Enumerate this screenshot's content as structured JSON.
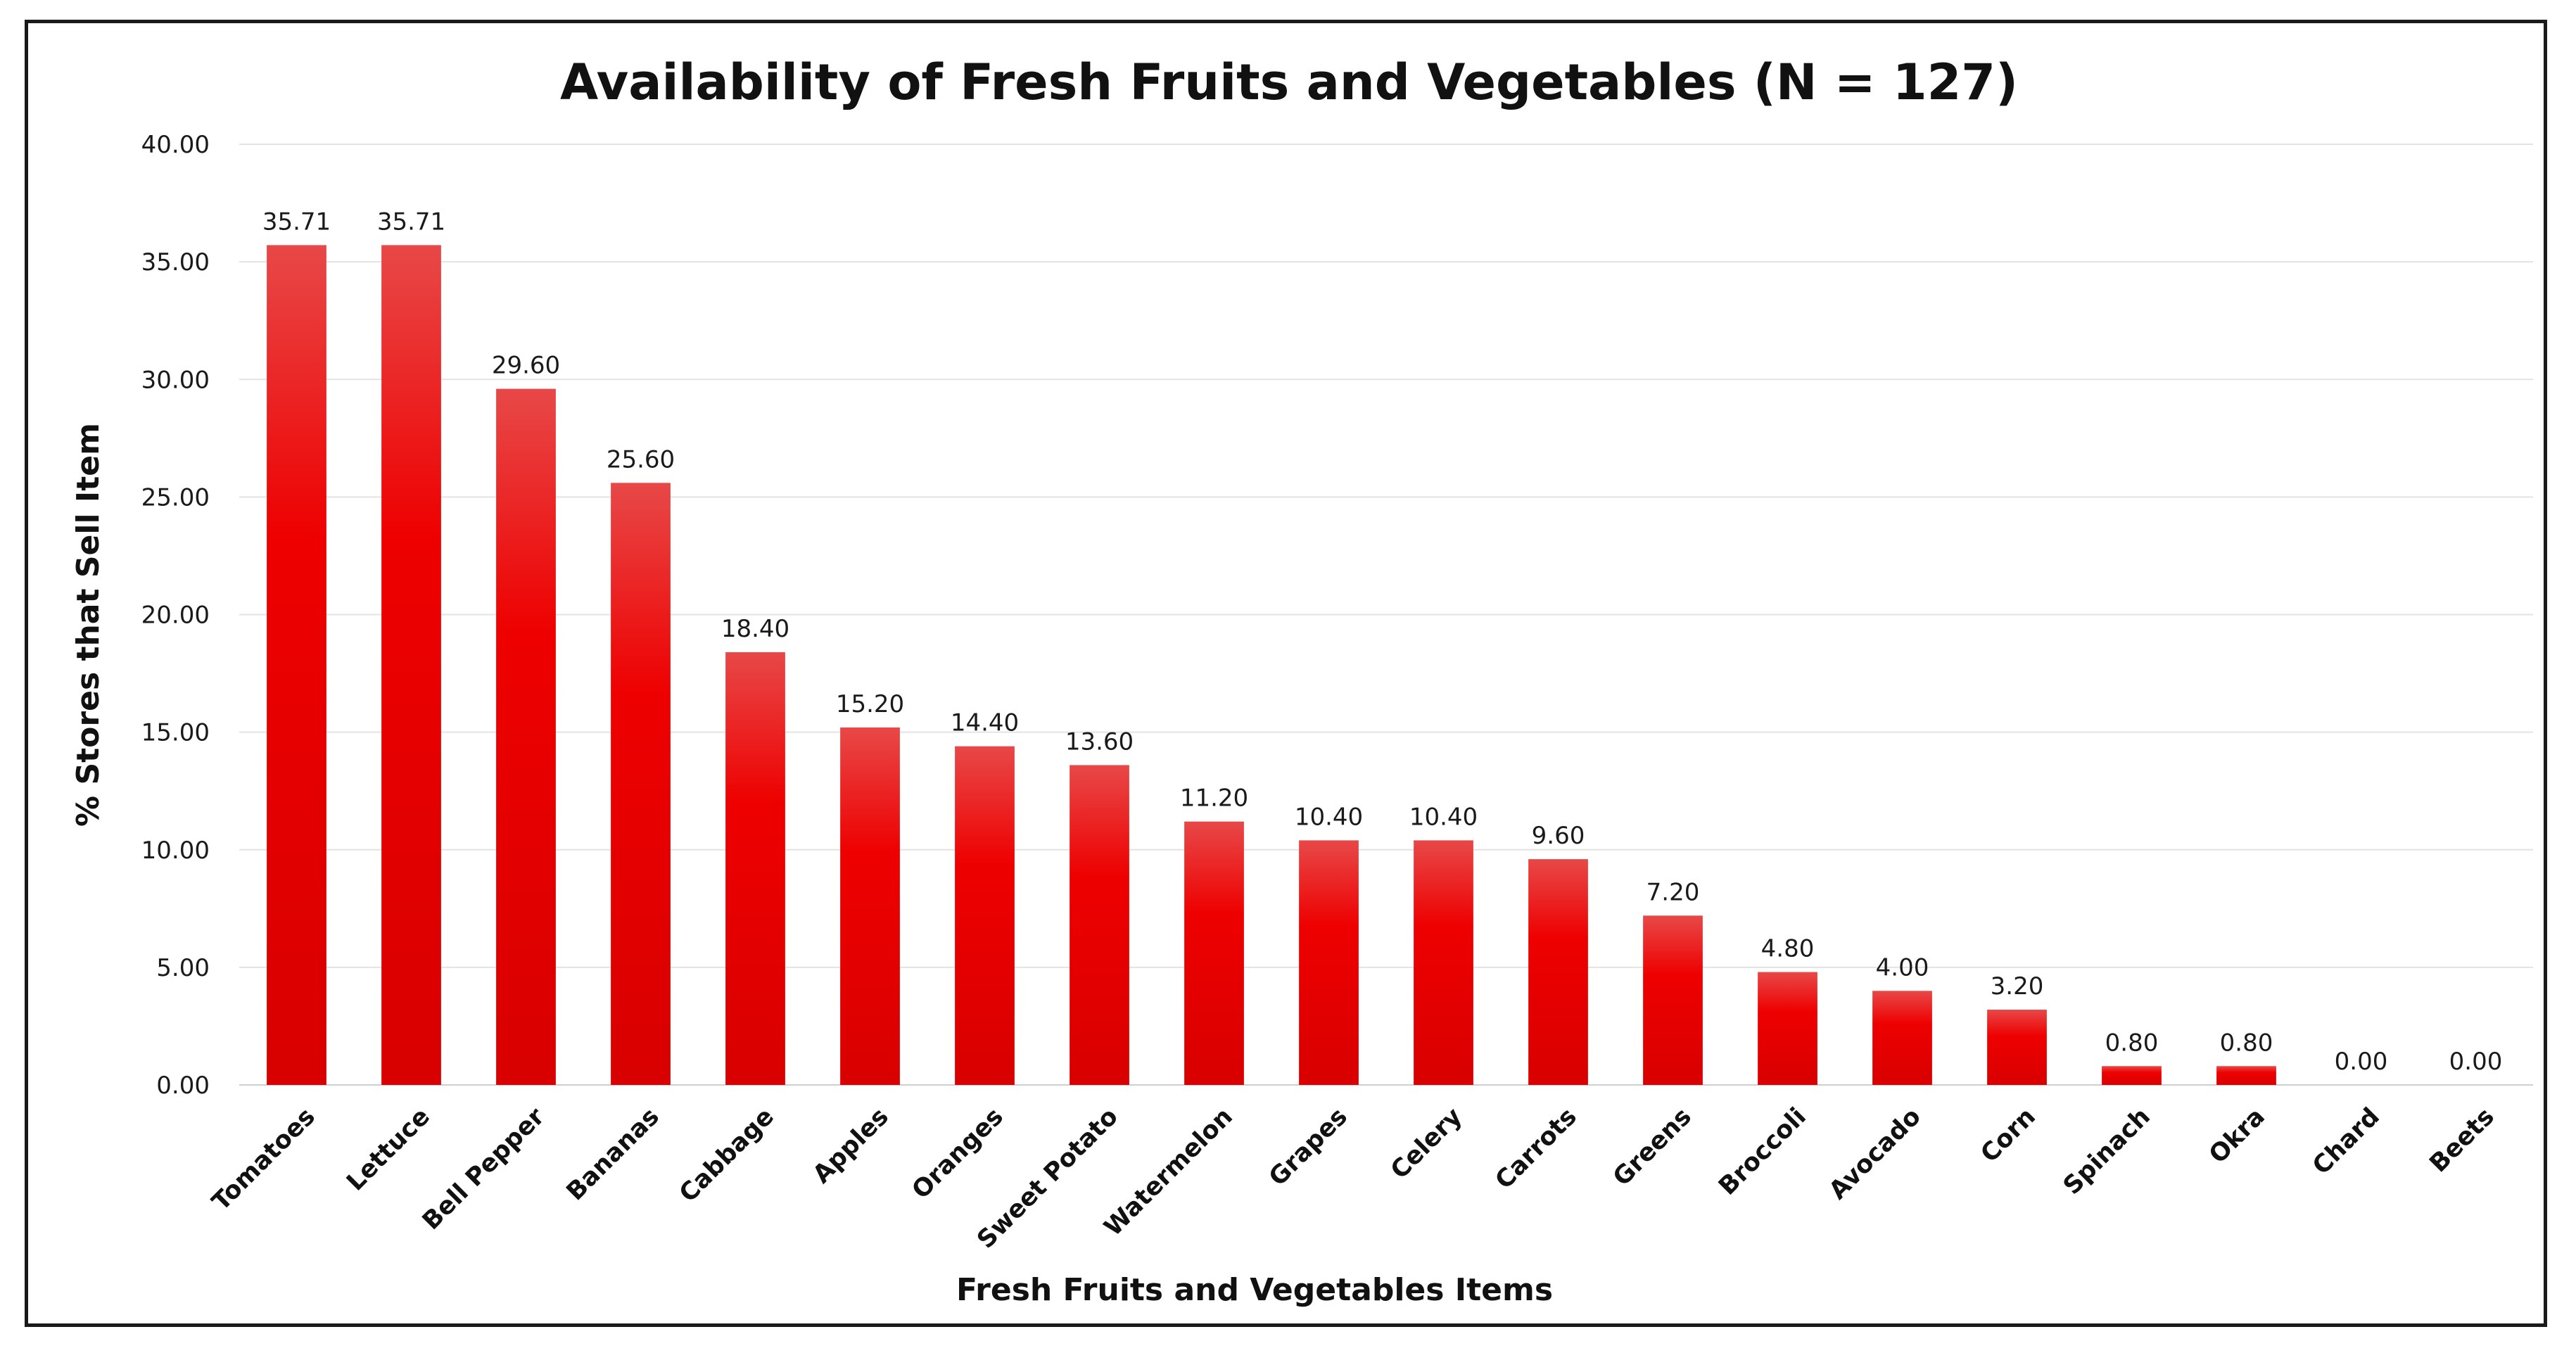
{
  "chart_data": {
    "type": "bar",
    "title": "Availability of Fresh Fruits and Vegetables (N = 127)",
    "xlabel": "Fresh Fruits and Vegetables Items",
    "ylabel": "%  Stores that Sell Item",
    "ylim": [
      0,
      40
    ],
    "yticks": [
      "0.00",
      "5.00",
      "10.00",
      "15.00",
      "20.00",
      "25.00",
      "30.00",
      "35.00",
      "40.00"
    ],
    "grid": true,
    "categories": [
      "Tomatoes",
      "Lettuce",
      "Bell Pepper",
      "Bananas",
      "Cabbage",
      "Apples",
      "Oranges",
      "Sweet Potato",
      "Watermelon",
      "Grapes",
      "Celery",
      "Carrots",
      "Greens",
      "Broccoli",
      "Avocado",
      "Corn",
      "Spinach",
      "Okra",
      "Chard",
      "Beets"
    ],
    "values": [
      35.71,
      35.71,
      29.6,
      25.6,
      18.4,
      15.2,
      14.4,
      13.6,
      11.2,
      10.4,
      10.4,
      9.6,
      7.2,
      4.8,
      4.0,
      3.2,
      0.8,
      0.8,
      0.0,
      0.0
    ],
    "data_labels": [
      "35.71",
      "35.71",
      "29.60",
      "25.60",
      "18.40",
      "15.20",
      "14.40",
      "13.60",
      "11.20",
      "10.40",
      "10.40",
      "9.60",
      "7.20",
      "4.80",
      "4.00",
      "3.20",
      "0.80",
      "0.80",
      "0.00",
      "0.00"
    ],
    "colors": {
      "bar_top": "#e84848",
      "bar_mid": "#ee0000",
      "bar_bottom": "#d80000",
      "frame": "#1a1a1a",
      "grid": "#e3e3e3"
    }
  }
}
